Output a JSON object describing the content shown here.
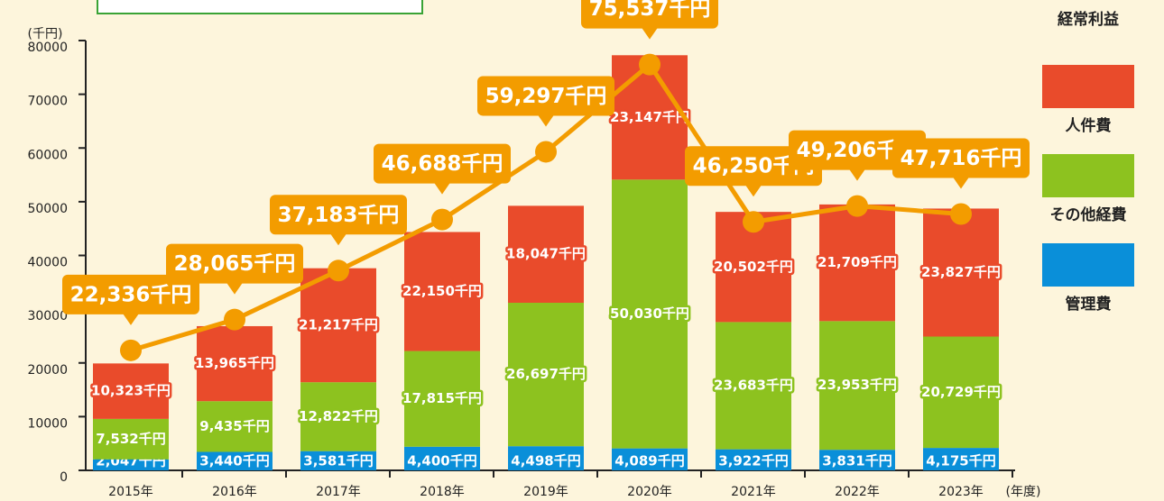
{
  "chart_data": {
    "type": "bar",
    "stacked": true,
    "y_axis_label": "(千円)",
    "x_axis_label": "(年度)",
    "categories": [
      "2015年",
      "2016年",
      "2017年",
      "2018年",
      "2019年",
      "2020年",
      "2021年",
      "2022年",
      "2023年"
    ],
    "ylim": [
      0,
      80000
    ],
    "yticks": [
      0,
      10000,
      20000,
      30000,
      40000,
      50000,
      60000,
      70000,
      80000
    ],
    "series": [
      {
        "name": "管理費",
        "type": "bar",
        "color": "#0a8fd9",
        "values": [
          2047,
          3440,
          3581,
          4400,
          4498,
          4089,
          3922,
          3831,
          4175
        ],
        "value_labels": [
          "2,047千円",
          "3,440千円",
          "3,581千円",
          "4,400千円",
          "4,498千円",
          "4,089千円",
          "3,922千円",
          "3,831千円",
          "4,175千円"
        ]
      },
      {
        "name": "その他経費",
        "type": "bar",
        "color": "#8dc21f",
        "values": [
          7532,
          9435,
          12822,
          17815,
          26697,
          50030,
          23683,
          23953,
          20729
        ],
        "value_labels": [
          "7,532千円",
          "9,435千円",
          "12,822千円",
          "17,815千円",
          "26,697千円",
          "50,030千円",
          "23,683千円",
          "23,953千円",
          "20,729千円"
        ]
      },
      {
        "name": "人件費",
        "type": "bar",
        "color": "#e94b2b",
        "values": [
          10323,
          13965,
          21217,
          22150,
          18047,
          23147,
          20502,
          21709,
          23827
        ],
        "value_labels": [
          "10,323千円",
          "13,965千円",
          "21,217千円",
          "22,150千円",
          "18,047千円",
          "23,147千円",
          "20,502千円",
          "21,709千円",
          "23,827千円"
        ]
      },
      {
        "name": "経常利益",
        "type": "line",
        "color": "#f39c00",
        "values": [
          22336,
          28065,
          37183,
          46688,
          59297,
          75537,
          46250,
          49206,
          47716
        ],
        "value_labels": [
          "22,336千円",
          "28,065千円",
          "37,183千円",
          "46,688千円",
          "59,297千円",
          "75,537千円",
          "46,250千円",
          "49,206千円",
          "47,716千円"
        ]
      }
    ]
  }
}
